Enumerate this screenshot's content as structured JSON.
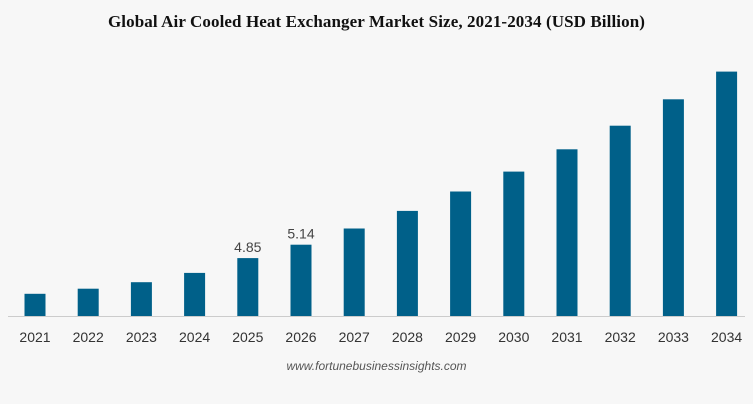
{
  "chart_data": {
    "type": "bar",
    "title": "Global Air Cooled Heat Exchanger Market Size, 2021-2034 (USD Billion)",
    "xlabel": "",
    "ylabel": "",
    "categories": [
      "2021",
      "2022",
      "2023",
      "2024",
      "2025",
      "2026",
      "2027",
      "2028",
      "2029",
      "2030",
      "2031",
      "2032",
      "2033",
      "2034"
    ],
    "values": [
      4.08,
      4.19,
      4.33,
      4.53,
      4.85,
      5.14,
      5.49,
      5.87,
      6.29,
      6.72,
      7.2,
      7.71,
      8.28,
      8.88
    ],
    "data_labels": {
      "2025": "4.85",
      "2026": "5.14"
    },
    "ylim": [
      3.6,
      9.0
    ],
    "grid": false,
    "bar_color": "#006089",
    "axis_color": "#cccccc"
  },
  "source": "www.fortunebusinessinsights.com"
}
